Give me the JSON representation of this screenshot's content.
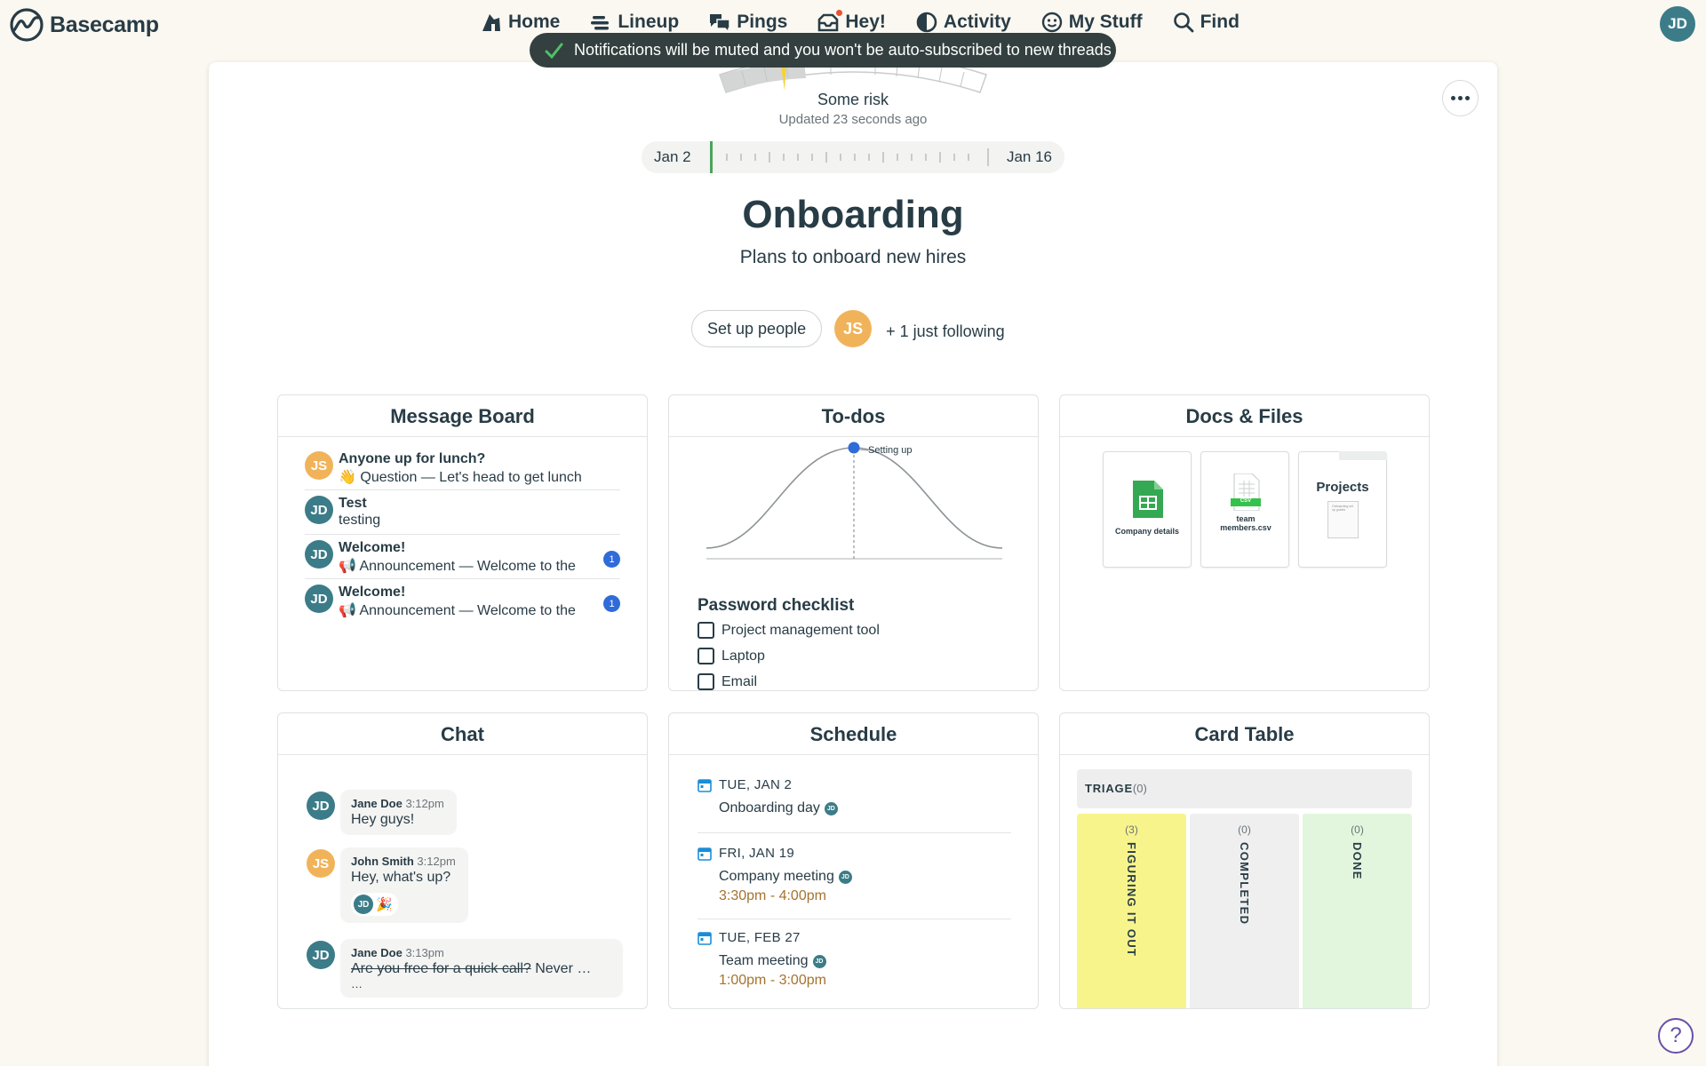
{
  "brand": {
    "name": "Basecamp"
  },
  "nav": {
    "items": [
      {
        "label": "Home",
        "icon": "home-icon"
      },
      {
        "label": "Lineup",
        "icon": "lineup-icon"
      },
      {
        "label": "Pings",
        "icon": "pings-icon"
      },
      {
        "label": "Hey!",
        "icon": "hey-icon"
      },
      {
        "label": "Activity",
        "icon": "activity-icon"
      },
      {
        "label": "My Stuff",
        "icon": "my-stuff-icon"
      },
      {
        "label": "Find",
        "icon": "search-icon"
      }
    ],
    "user_initials": "JD"
  },
  "toast": {
    "text": "Notifications will be muted and you won't be auto-subscribed to new threads"
  },
  "risk": {
    "label": "Some risk",
    "updated": "Updated 23 seconds ago"
  },
  "timeline": {
    "start": "Jan 2",
    "end": "Jan 16"
  },
  "project": {
    "title": "Onboarding",
    "description": "Plans to onboard new hires",
    "setup_people_label": "Set up people",
    "follower_initials": "JS",
    "following_text": "+ 1 just following"
  },
  "tools": {
    "message_board": {
      "title": "Message Board",
      "messages": [
        {
          "initials": "JS",
          "title": "Anyone up for lunch?",
          "subtitle": "👋 Question — Let's head to get lunch",
          "badge": ""
        },
        {
          "initials": "JD",
          "title": "Test",
          "subtitle": "testing",
          "badge": ""
        },
        {
          "initials": "JD",
          "title": "Welcome!",
          "subtitle": "📢 Announcement — Welcome to the",
          "badge": "1"
        },
        {
          "initials": "JD",
          "title": "Welcome!",
          "subtitle": "📢 Announcement — Welcome to the",
          "badge": "1"
        }
      ]
    },
    "todos": {
      "title": "To-dos",
      "hill_label": "Setting up",
      "list_title": "Password checklist",
      "items": [
        "Project management tool",
        "Laptop",
        "Email"
      ]
    },
    "docs": {
      "title": "Docs & Files",
      "files": [
        {
          "name": "Company details",
          "type": "sheet"
        },
        {
          "name": "team members.csv",
          "type": "csv"
        },
        {
          "name": "Projects",
          "type": "folder"
        }
      ],
      "csv_tag": "CSV",
      "folder_doc_text": "Onboarding setup guides"
    },
    "chat": {
      "title": "Chat",
      "messages": [
        {
          "initials": "JD",
          "name": "Jane Doe",
          "time": "3:12pm",
          "text": "Hey guys!"
        },
        {
          "initials": "JS",
          "name": "John Smith",
          "time": "3:12pm",
          "text": "Hey, what's up?",
          "boost_initials": "JD",
          "boost_emoji": "🎉"
        },
        {
          "initials": "JD",
          "name": "Jane Doe",
          "time": "3:13pm",
          "text_struck": "Are you free for a quick call?",
          "text_rest": " Never …",
          "text_more": "…"
        }
      ]
    },
    "schedule": {
      "title": "Schedule",
      "events": [
        {
          "date": "TUE, JAN 2",
          "title": "Onboarding day",
          "time": ""
        },
        {
          "date": "FRI, JAN 19",
          "title": "Company meeting",
          "time": "3:30pm - 4:00pm"
        },
        {
          "date": "TUE, FEB 27",
          "title": "Team meeting",
          "time": "1:00pm - 3:00pm"
        }
      ],
      "attendee_initials": "JD"
    },
    "card_table": {
      "title": "Card Table",
      "triage_label": "TRIAGE",
      "triage_count": "(0)",
      "columns": [
        {
          "name": "FIGURING IT OUT",
          "count": "(3)",
          "color": "#f8f48c"
        },
        {
          "name": "COMPLETED",
          "count": "(0)",
          "color": "#efefef"
        },
        {
          "name": "DONE",
          "count": "(0)",
          "color": "#e2f6dd"
        }
      ]
    }
  },
  "help": {
    "label": "?"
  },
  "colors": {
    "accent": "#3b7c88",
    "avatar_js": "#f1b35a",
    "badge": "#2f6bd9",
    "time": "#a4732f"
  }
}
